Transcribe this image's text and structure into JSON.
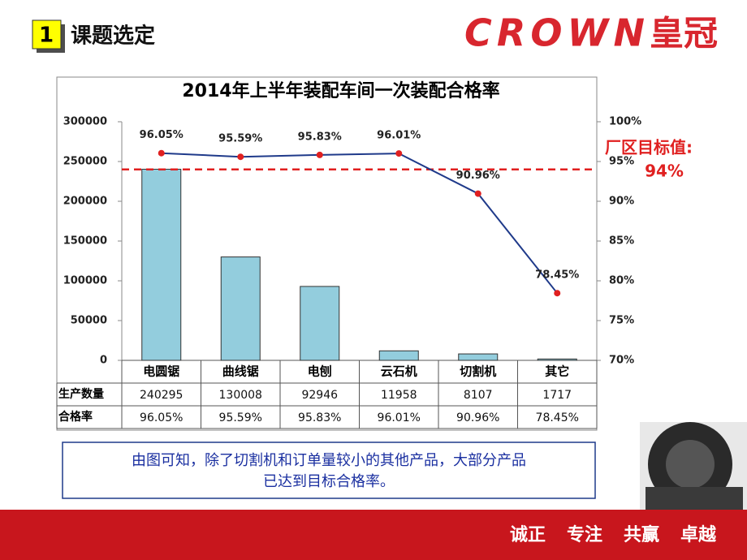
{
  "header": {
    "number": "1",
    "title": "课题选定",
    "logo_text": "CROWN",
    "logo_cn": "皇冠"
  },
  "chart_data": {
    "type": "bar",
    "title": "2014年上半年装配车间一次装配合格率",
    "categories": [
      "电圆锯",
      "曲线锯",
      "电刨",
      "云石机",
      "切割机",
      "其它"
    ],
    "series": [
      {
        "name": "生产数量",
        "type": "bar",
        "color": "#93cddd",
        "values": [
          240295,
          130008,
          92946,
          11958,
          8107,
          1717
        ]
      },
      {
        "name": "合格率",
        "type": "line",
        "axis": "y2",
        "color": "#1f3a8a",
        "marker_color": "#e02020",
        "values": [
          96.05,
          95.59,
          95.83,
          96.01,
          90.96,
          78.45
        ],
        "value_labels": [
          "96.05%",
          "95.59%",
          "95.83%",
          "96.01%",
          "90.96%",
          "78.45%"
        ]
      }
    ],
    "ylim": [
      0,
      300000
    ],
    "yticks": [
      0,
      50000,
      100000,
      150000,
      200000,
      250000,
      300000
    ],
    "y2lim": [
      70,
      100
    ],
    "y2ticks": [
      {
        "value": 70,
        "label": "70%"
      },
      {
        "value": 75,
        "label": "75%"
      },
      {
        "value": 80,
        "label": "80%"
      },
      {
        "value": 85,
        "label": "85%"
      },
      {
        "value": 90,
        "label": "90%"
      },
      {
        "value": 95,
        "label": "95%"
      },
      {
        "value": 100,
        "label": "100%"
      }
    ],
    "target": {
      "value": 94,
      "label": "94%",
      "text": "厂区目标值:",
      "color": "#e02020"
    }
  },
  "conclusion": {
    "lines": [
      "由图可知，除了切割机和订单量较小的其他产品，大部分产品",
      "已达到目标合格率。"
    ]
  },
  "footer": {
    "slogan": [
      "诚正",
      "专注",
      "共赢",
      "卓越"
    ]
  }
}
